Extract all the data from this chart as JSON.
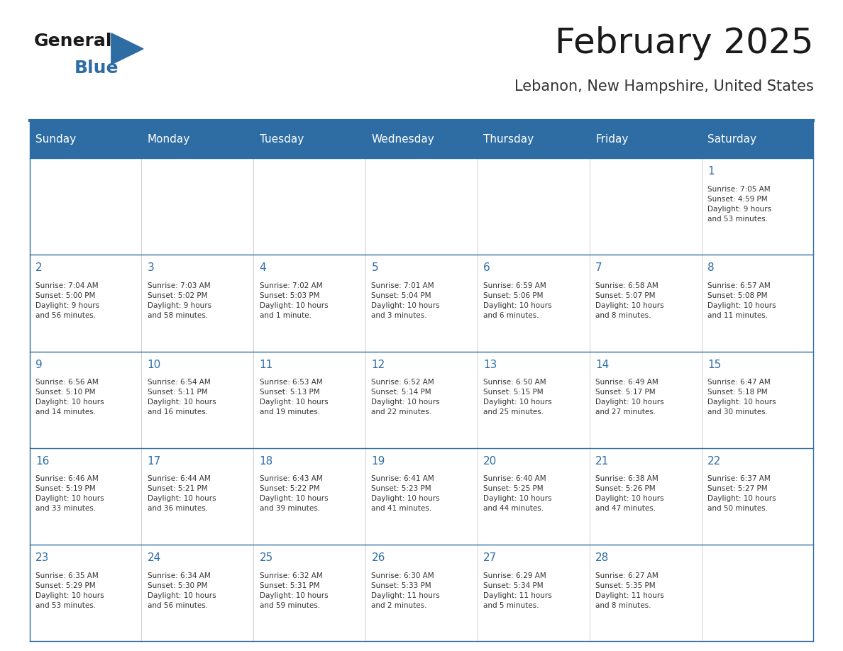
{
  "title": "February 2025",
  "subtitle": "Lebanon, New Hampshire, United States",
  "header_bg": "#2E6DA4",
  "header_text_color": "#FFFFFF",
  "cell_bg": "#FFFFFF",
  "day_number_color": "#2E6DA4",
  "text_color": "#333333",
  "line_color": "#2E6DA4",
  "days_of_week": [
    "Sunday",
    "Monday",
    "Tuesday",
    "Wednesday",
    "Thursday",
    "Friday",
    "Saturday"
  ],
  "weeks": [
    [
      {
        "day": null,
        "info": null
      },
      {
        "day": null,
        "info": null
      },
      {
        "day": null,
        "info": null
      },
      {
        "day": null,
        "info": null
      },
      {
        "day": null,
        "info": null
      },
      {
        "day": null,
        "info": null
      },
      {
        "day": 1,
        "info": "Sunrise: 7:05 AM\nSunset: 4:59 PM\nDaylight: 9 hours\nand 53 minutes."
      }
    ],
    [
      {
        "day": 2,
        "info": "Sunrise: 7:04 AM\nSunset: 5:00 PM\nDaylight: 9 hours\nand 56 minutes."
      },
      {
        "day": 3,
        "info": "Sunrise: 7:03 AM\nSunset: 5:02 PM\nDaylight: 9 hours\nand 58 minutes."
      },
      {
        "day": 4,
        "info": "Sunrise: 7:02 AM\nSunset: 5:03 PM\nDaylight: 10 hours\nand 1 minute."
      },
      {
        "day": 5,
        "info": "Sunrise: 7:01 AM\nSunset: 5:04 PM\nDaylight: 10 hours\nand 3 minutes."
      },
      {
        "day": 6,
        "info": "Sunrise: 6:59 AM\nSunset: 5:06 PM\nDaylight: 10 hours\nand 6 minutes."
      },
      {
        "day": 7,
        "info": "Sunrise: 6:58 AM\nSunset: 5:07 PM\nDaylight: 10 hours\nand 8 minutes."
      },
      {
        "day": 8,
        "info": "Sunrise: 6:57 AM\nSunset: 5:08 PM\nDaylight: 10 hours\nand 11 minutes."
      }
    ],
    [
      {
        "day": 9,
        "info": "Sunrise: 6:56 AM\nSunset: 5:10 PM\nDaylight: 10 hours\nand 14 minutes."
      },
      {
        "day": 10,
        "info": "Sunrise: 6:54 AM\nSunset: 5:11 PM\nDaylight: 10 hours\nand 16 minutes."
      },
      {
        "day": 11,
        "info": "Sunrise: 6:53 AM\nSunset: 5:13 PM\nDaylight: 10 hours\nand 19 minutes."
      },
      {
        "day": 12,
        "info": "Sunrise: 6:52 AM\nSunset: 5:14 PM\nDaylight: 10 hours\nand 22 minutes."
      },
      {
        "day": 13,
        "info": "Sunrise: 6:50 AM\nSunset: 5:15 PM\nDaylight: 10 hours\nand 25 minutes."
      },
      {
        "day": 14,
        "info": "Sunrise: 6:49 AM\nSunset: 5:17 PM\nDaylight: 10 hours\nand 27 minutes."
      },
      {
        "day": 15,
        "info": "Sunrise: 6:47 AM\nSunset: 5:18 PM\nDaylight: 10 hours\nand 30 minutes."
      }
    ],
    [
      {
        "day": 16,
        "info": "Sunrise: 6:46 AM\nSunset: 5:19 PM\nDaylight: 10 hours\nand 33 minutes."
      },
      {
        "day": 17,
        "info": "Sunrise: 6:44 AM\nSunset: 5:21 PM\nDaylight: 10 hours\nand 36 minutes."
      },
      {
        "day": 18,
        "info": "Sunrise: 6:43 AM\nSunset: 5:22 PM\nDaylight: 10 hours\nand 39 minutes."
      },
      {
        "day": 19,
        "info": "Sunrise: 6:41 AM\nSunset: 5:23 PM\nDaylight: 10 hours\nand 41 minutes."
      },
      {
        "day": 20,
        "info": "Sunrise: 6:40 AM\nSunset: 5:25 PM\nDaylight: 10 hours\nand 44 minutes."
      },
      {
        "day": 21,
        "info": "Sunrise: 6:38 AM\nSunset: 5:26 PM\nDaylight: 10 hours\nand 47 minutes."
      },
      {
        "day": 22,
        "info": "Sunrise: 6:37 AM\nSunset: 5:27 PM\nDaylight: 10 hours\nand 50 minutes."
      }
    ],
    [
      {
        "day": 23,
        "info": "Sunrise: 6:35 AM\nSunset: 5:29 PM\nDaylight: 10 hours\nand 53 minutes."
      },
      {
        "day": 24,
        "info": "Sunrise: 6:34 AM\nSunset: 5:30 PM\nDaylight: 10 hours\nand 56 minutes."
      },
      {
        "day": 25,
        "info": "Sunrise: 6:32 AM\nSunset: 5:31 PM\nDaylight: 10 hours\nand 59 minutes."
      },
      {
        "day": 26,
        "info": "Sunrise: 6:30 AM\nSunset: 5:33 PM\nDaylight: 11 hours\nand 2 minutes."
      },
      {
        "day": 27,
        "info": "Sunrise: 6:29 AM\nSunset: 5:34 PM\nDaylight: 11 hours\nand 5 minutes."
      },
      {
        "day": 28,
        "info": "Sunrise: 6:27 AM\nSunset: 5:35 PM\nDaylight: 11 hours\nand 8 minutes."
      },
      {
        "day": null,
        "info": null
      }
    ]
  ],
  "logo_text1": "General",
  "logo_text2": "Blue",
  "logo_color1": "#1a1a1a",
  "logo_color2": "#2E6DA4",
  "logo_triangle_color": "#2E6DA4",
  "fig_width": 11.88,
  "fig_height": 9.18,
  "dpi": 100
}
